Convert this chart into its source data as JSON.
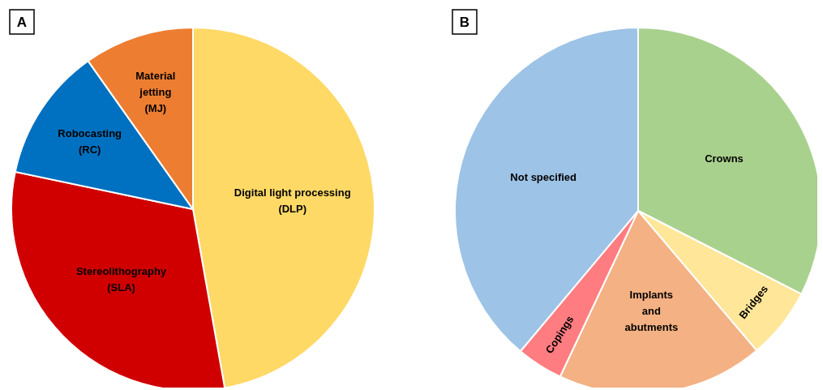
{
  "chart_data": [
    {
      "type": "pie",
      "title": "A",
      "categories": [
        "Digital light processing\n(DLP)",
        "Stereolithography\n(SLA)",
        "Robocasting\n(RC)",
        "Material\njetting\n(MJ)"
      ],
      "values": [
        47.2,
        31.1,
        11.9,
        9.8
      ],
      "colors": [
        "#ffd966",
        "#d00000",
        "#0070c0",
        "#ed7d31"
      ]
    },
    {
      "type": "pie",
      "title": "B",
      "categories": [
        "Crowns",
        "Bridges",
        "Implants\nand\nabutments",
        "Copings",
        "Not specified"
      ],
      "values": [
        32.5,
        6.3,
        18.2,
        4.1,
        38.9
      ],
      "colors": [
        "#a9d18e",
        "#ffe699",
        "#f4b183",
        "#ff7c80",
        "#9dc3e6"
      ]
    }
  ]
}
